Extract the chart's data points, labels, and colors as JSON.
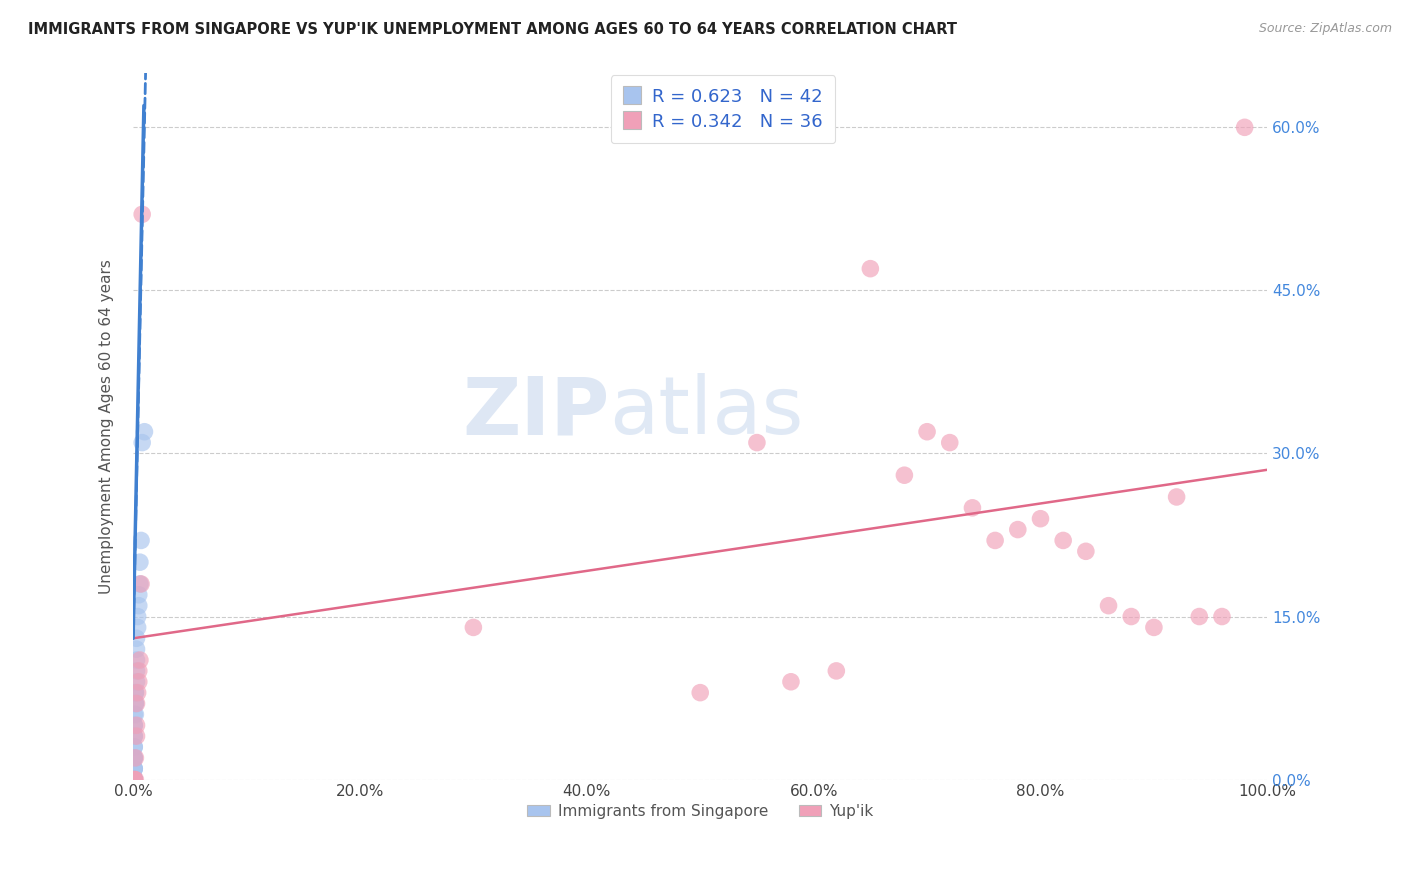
{
  "title": "IMMIGRANTS FROM SINGAPORE VS YUP'IK UNEMPLOYMENT AMONG AGES 60 TO 64 YEARS CORRELATION CHART",
  "source": "Source: ZipAtlas.com",
  "ylabel": "Unemployment Among Ages 60 to 64 years",
  "xlim": [
    0,
    1.0
  ],
  "ylim": [
    0,
    0.65
  ],
  "xticks": [
    0.0,
    0.2,
    0.4,
    0.6,
    0.8,
    1.0
  ],
  "xticklabels": [
    "0.0%",
    "20.0%",
    "40.0%",
    "60.0%",
    "80.0%",
    "100.0%"
  ],
  "yticks": [
    0.0,
    0.15,
    0.3,
    0.45,
    0.6
  ],
  "yticklabels": [
    "0.0%",
    "15.0%",
    "30.0%",
    "45.0%",
    "60.0%"
  ],
  "blue_R": 0.623,
  "blue_N": 42,
  "pink_R": 0.342,
  "pink_N": 36,
  "legend_label_blue": "Immigrants from Singapore",
  "legend_label_pink": "Yup'ik",
  "blue_color": "#a8c4ee",
  "pink_color": "#f0a0b8",
  "blue_line_color": "#4080d0",
  "pink_line_color": "#e06888",
  "blue_scatter_x": [
    0.001,
    0.001,
    0.001,
    0.001,
    0.001,
    0.001,
    0.001,
    0.001,
    0.001,
    0.001,
    0.001,
    0.001,
    0.001,
    0.001,
    0.001,
    0.001,
    0.001,
    0.001,
    0.001,
    0.001,
    0.001,
    0.001,
    0.001,
    0.002,
    0.002,
    0.002,
    0.002,
    0.002,
    0.003,
    0.003,
    0.003,
    0.003,
    0.003,
    0.004,
    0.004,
    0.005,
    0.005,
    0.006,
    0.006,
    0.007,
    0.008,
    0.01
  ],
  "blue_scatter_y": [
    0.0,
    0.0,
    0.0,
    0.0,
    0.0,
    0.0,
    0.0,
    0.0,
    0.0,
    0.0,
    0.01,
    0.01,
    0.01,
    0.02,
    0.02,
    0.02,
    0.03,
    0.03,
    0.04,
    0.04,
    0.05,
    0.05,
    0.06,
    0.06,
    0.07,
    0.07,
    0.08,
    0.08,
    0.09,
    0.1,
    0.11,
    0.12,
    0.13,
    0.14,
    0.15,
    0.16,
    0.17,
    0.18,
    0.2,
    0.22,
    0.31,
    0.32
  ],
  "pink_scatter_x": [
    0.001,
    0.001,
    0.001,
    0.002,
    0.002,
    0.003,
    0.003,
    0.003,
    0.004,
    0.005,
    0.005,
    0.006,
    0.007,
    0.008,
    0.3,
    0.5,
    0.55,
    0.58,
    0.62,
    0.65,
    0.68,
    0.7,
    0.72,
    0.74,
    0.76,
    0.78,
    0.8,
    0.82,
    0.84,
    0.86,
    0.88,
    0.9,
    0.92,
    0.94,
    0.96,
    0.98
  ],
  "pink_scatter_y": [
    0.0,
    0.0,
    0.0,
    0.0,
    0.02,
    0.04,
    0.05,
    0.07,
    0.08,
    0.09,
    0.1,
    0.11,
    0.18,
    0.52,
    0.14,
    0.08,
    0.31,
    0.09,
    0.1,
    0.47,
    0.28,
    0.32,
    0.31,
    0.25,
    0.22,
    0.23,
    0.24,
    0.22,
    0.21,
    0.16,
    0.15,
    0.14,
    0.26,
    0.15,
    0.15,
    0.6
  ],
  "blue_trendline_x": [
    0.0,
    0.011
  ],
  "blue_trendline_y": [
    0.13,
    0.65
  ],
  "pink_trendline_x": [
    0.0,
    1.0
  ],
  "pink_trendline_y": [
    0.13,
    0.285
  ],
  "watermark_zip": "ZIP",
  "watermark_atlas": "atlas"
}
